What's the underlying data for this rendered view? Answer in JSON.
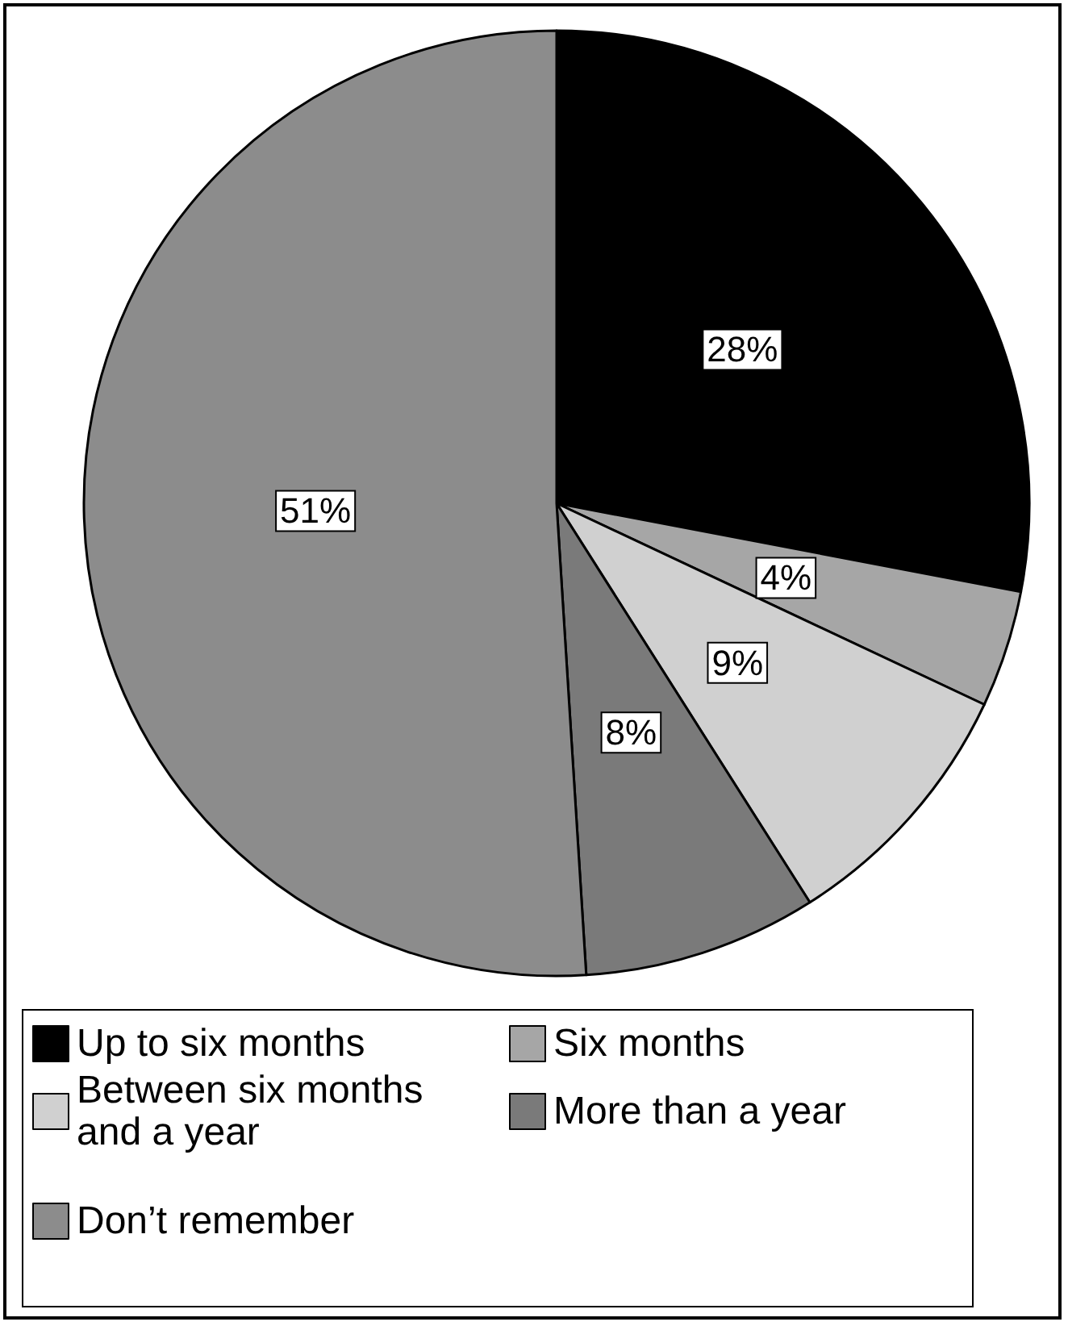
{
  "chart_data": {
    "type": "pie",
    "categories": [
      "Up to six months",
      "Six months",
      "Between six months and a year",
      "More than a year",
      "Don’t remember"
    ],
    "values": [
      28,
      4,
      9,
      8,
      51
    ],
    "colors": [
      "#000000",
      "#a6a6a6",
      "#d0d0d0",
      "#7a7a7a",
      "#8c8c8c"
    ],
    "value_labels": [
      "28%",
      "4%",
      "9%",
      "8%",
      "51%"
    ],
    "legend": "bottom"
  }
}
